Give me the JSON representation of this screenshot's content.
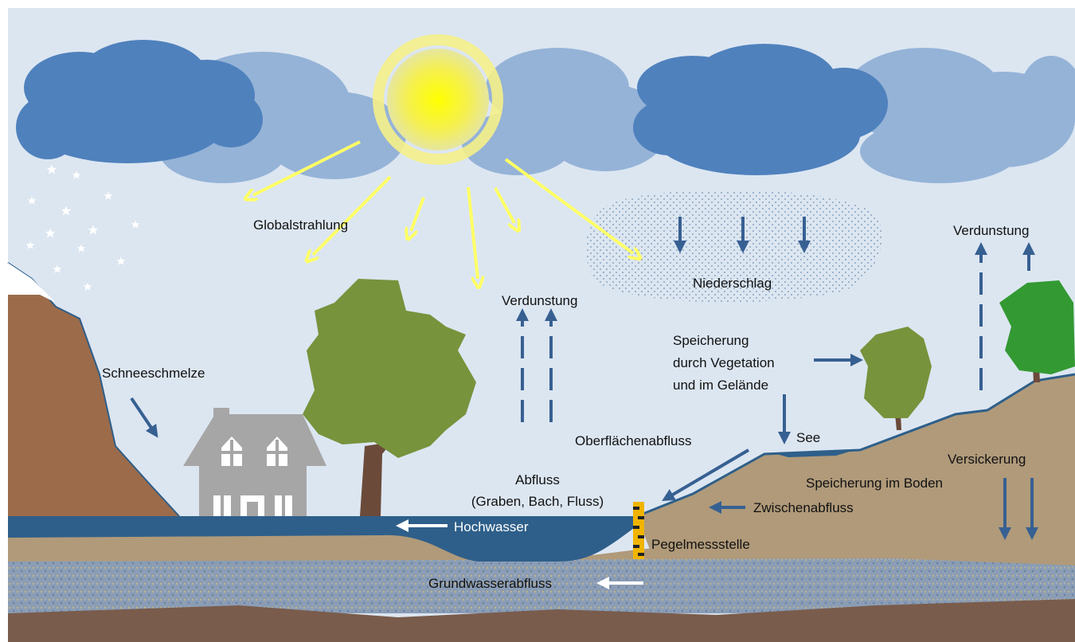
{
  "labels": {
    "global_radiation": "Globalstrahlung",
    "evaporation_center": "Verdunstung",
    "precipitation": "Niederschlag",
    "evaporation_right": "Verdunstung",
    "snowmelt": "Schneeschmelze",
    "vegetation_storage": [
      "Speicherung",
      "durch Vegetation",
      "und im Gelände"
    ],
    "lake": "See",
    "surface_runoff": "Oberflächenabfluss",
    "runoff": [
      "Abfluss",
      "(Graben, Bach, Fluss)"
    ],
    "infiltration": "Versickerung",
    "soil_storage": "Speicherung im Boden",
    "interflow": "Zwischenabfluss",
    "flood": "Hochwasser",
    "gauge": "Pegelmessstelle",
    "groundwater_runoff": "Grundwasserabfluss"
  }
}
